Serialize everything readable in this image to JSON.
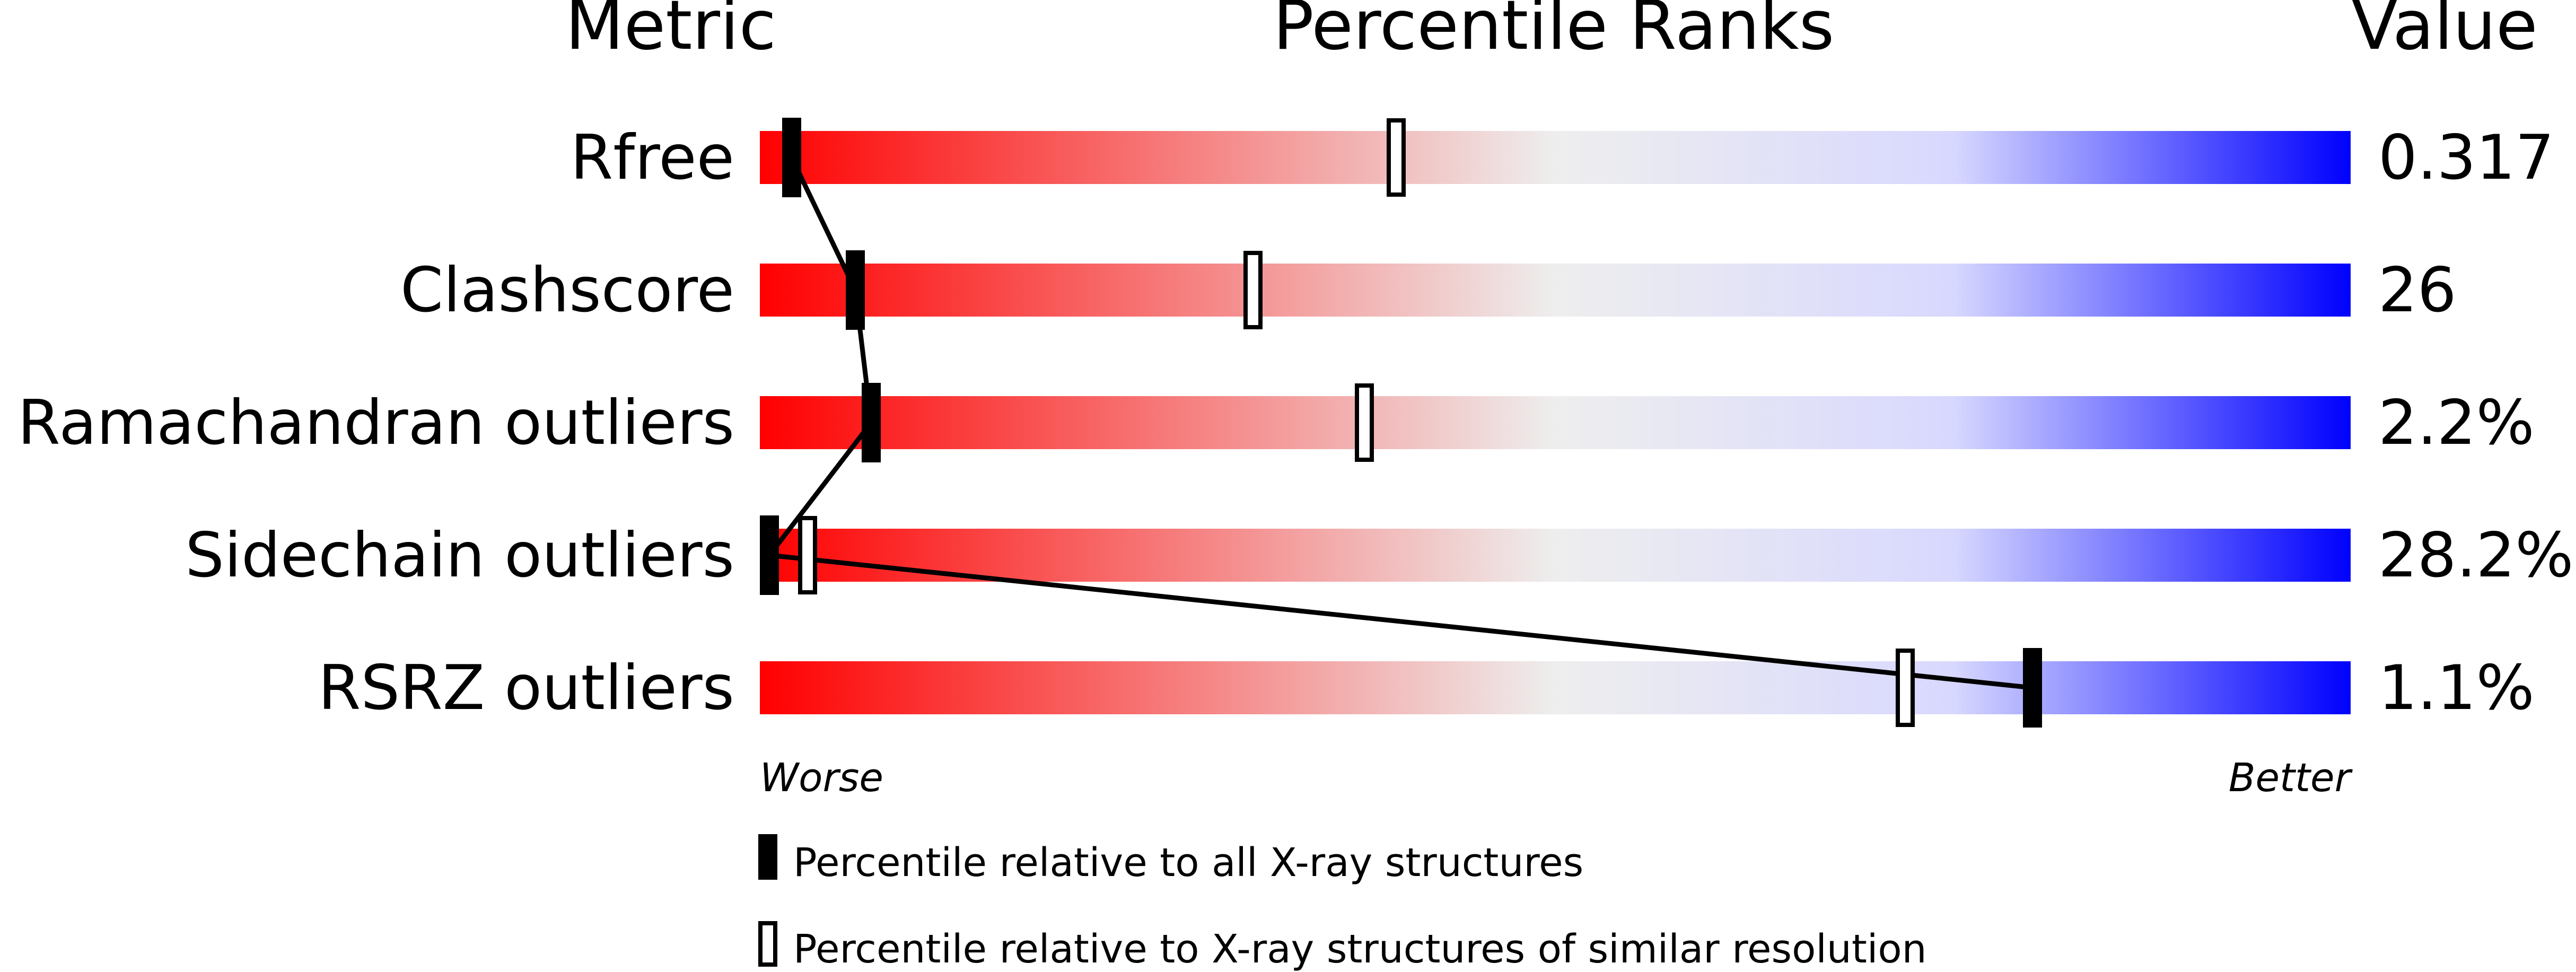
{
  "header": {
    "metric": "Metric",
    "percentile": "Percentile Ranks",
    "value": "Value"
  },
  "axis": {
    "worse": "Worse",
    "better": "Better"
  },
  "legend": {
    "absolute": "Percentile relative to all X-ray structures",
    "relative": "Percentile relative to X-ray structures of similar resolution"
  },
  "colors": {
    "worse": "#ff0000",
    "middle": "#eeeeee",
    "better": "#0000ff",
    "marker": "#000000"
  },
  "chart_data": {
    "type": "bar",
    "title": "Percentile Ranks",
    "xlim": [
      0,
      100
    ],
    "categories": [
      "Rfree",
      "Clashscore",
      "Ramachandran outliers",
      "Sidechain outliers",
      "RSRZ outliers"
    ],
    "values": [
      "0.317",
      "26",
      "2.2%",
      "28.2%",
      "1.1%"
    ],
    "series": [
      {
        "name": "Percentile relative to all X-ray structures",
        "marker": "filled",
        "values": [
          2,
          6,
          7,
          0,
          80
        ]
      },
      {
        "name": "Percentile relative to X-ray structures of similar resolution",
        "marker": "hollow",
        "values": [
          40,
          31,
          38,
          3,
          72
        ]
      }
    ]
  }
}
